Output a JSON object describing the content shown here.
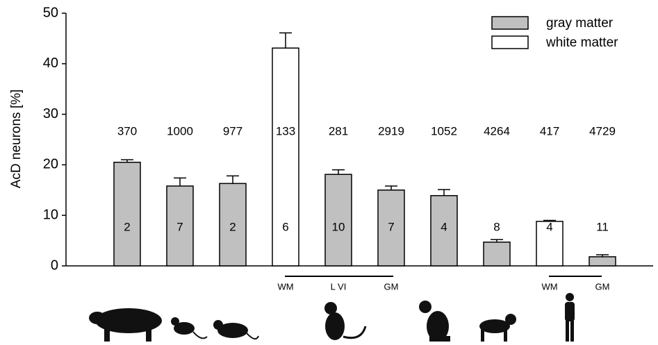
{
  "chart_data": {
    "type": "bar",
    "ylabel": "AcD neurons [%]",
    "values": [
      20.5,
      15.8,
      16.3,
      43.1,
      18.1,
      15.0,
      13.9,
      4.7,
      8.8,
      1.8
    ],
    "errors": [
      0.5,
      1.6,
      1.5,
      3.0,
      0.9,
      0.8,
      1.2,
      0.5,
      0.2,
      0.4
    ],
    "colors": [
      "#c0c0c0",
      "#c0c0c0",
      "#c0c0c0",
      "#ffffff",
      "#c0c0c0",
      "#c0c0c0",
      "#c0c0c0",
      "#c0c0c0",
      "#ffffff",
      "#c0c0c0"
    ],
    "cell_counts": [
      370,
      1000,
      977,
      133,
      281,
      2919,
      1052,
      4264,
      417,
      4729
    ],
    "animal_counts": [
      2,
      7,
      2,
      6,
      10,
      7,
      4,
      8,
      4,
      11
    ],
    "sub_labels": [
      null,
      null,
      null,
      "WM",
      "L VI",
      "GM",
      null,
      null,
      "WM",
      "GM"
    ],
    "legend": [
      {
        "name": "gray matter",
        "color": "#c0c0c0"
      },
      {
        "name": "white matter",
        "color": "#ffffff"
      }
    ],
    "ylim": [
      0,
      50
    ],
    "yticks": [
      0,
      10,
      20,
      30,
      40,
      50
    ]
  }
}
